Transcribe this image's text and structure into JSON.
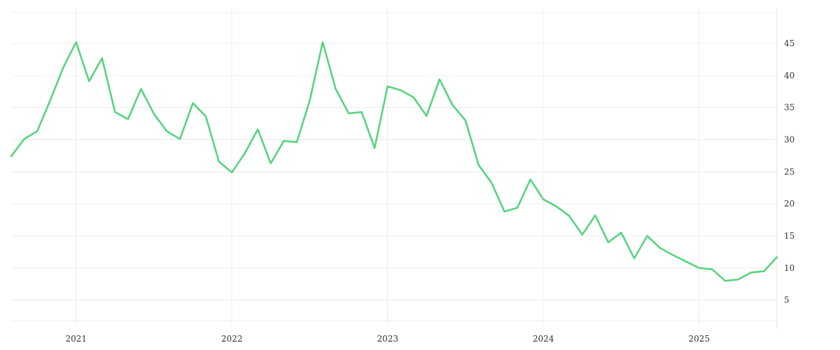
{
  "chart_data": {
    "type": "line",
    "title": "",
    "xlabel": "",
    "ylabel": "",
    "x_tick_labels": [
      "2021",
      "2022",
      "2023",
      "2024",
      "2025"
    ],
    "y_ticks": [
      5,
      10,
      15,
      20,
      25,
      30,
      35,
      40,
      45
    ],
    "xlim": [
      "2020-08-01",
      "2025-07-01"
    ],
    "ylim": [
      1.8,
      49.8
    ],
    "grid": true,
    "y_axis_side": "right",
    "legend": "none",
    "line_color": "#57d47e",
    "series": [
      {
        "x": [
          "2020-08",
          "2020-09",
          "2020-10",
          "2020-11",
          "2020-12",
          "2021-01",
          "2021-02",
          "2021-03",
          "2021-04",
          "2021-05",
          "2021-06",
          "2021-07",
          "2021-08",
          "2021-09",
          "2021-10",
          "2021-11",
          "2021-12",
          "2022-01",
          "2022-02",
          "2022-03",
          "2022-04",
          "2022-05",
          "2022-06",
          "2022-07",
          "2022-08",
          "2022-09",
          "2022-10",
          "2022-11",
          "2022-12",
          "2023-01",
          "2023-02",
          "2023-03",
          "2023-04",
          "2023-05",
          "2023-06",
          "2023-07",
          "2023-08",
          "2023-09",
          "2023-10",
          "2023-11",
          "2023-12",
          "2024-01",
          "2024-02",
          "2024-03",
          "2024-04",
          "2024-05",
          "2024-06",
          "2024-07",
          "2024-08",
          "2024-09",
          "2024-10",
          "2024-11",
          "2024-12",
          "2025-01",
          "2025-02",
          "2025-03",
          "2025-04",
          "2025-05",
          "2025-06",
          "2025-07"
        ],
        "y": [
          27.4,
          30.1,
          31.3,
          36.1,
          41.2,
          45.2,
          39.1,
          42.7,
          34.3,
          33.2,
          37.9,
          34.0,
          31.3,
          30.1,
          35.7,
          33.6,
          26.6,
          24.9,
          27.9,
          31.6,
          26.3,
          29.8,
          29.6,
          36.1,
          45.2,
          37.9,
          34.1,
          34.3,
          28.7,
          38.3,
          37.7,
          36.6,
          33.7,
          39.4,
          35.4,
          33.0,
          26.1,
          23.3,
          18.8,
          19.4,
          23.8,
          20.7,
          19.6,
          18.1,
          15.2,
          18.2,
          14.0,
          15.5,
          11.5,
          15.0,
          13.1,
          12.0,
          11.0,
          10.0,
          9.8,
          8.0,
          8.2,
          9.3,
          9.5,
          11.7
        ]
      }
    ]
  }
}
